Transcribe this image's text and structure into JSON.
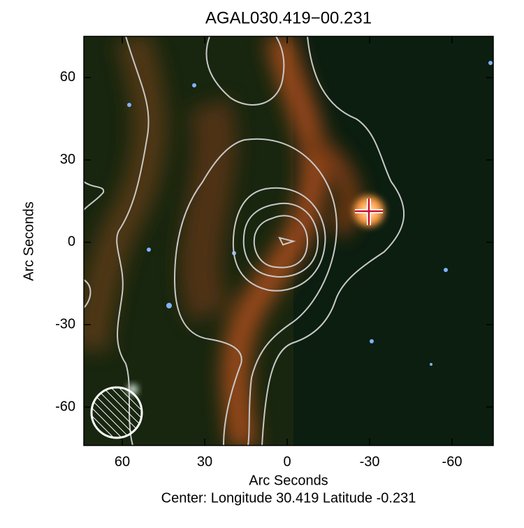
{
  "chart_data": {
    "type": "image",
    "title": "AGAL030.419−00.231",
    "x_label": "Arc Seconds",
    "y_label": "Arc Seconds",
    "footer": "Center:  Longitude 30.419 Latitude -0.231",
    "xlim": [
      74,
      -75
    ],
    "ylim": [
      -74,
      75
    ],
    "xticks": [
      60,
      30,
      0,
      -30,
      -60
    ],
    "yticks": [
      -60,
      -30,
      0,
      30,
      60
    ]
  }
}
